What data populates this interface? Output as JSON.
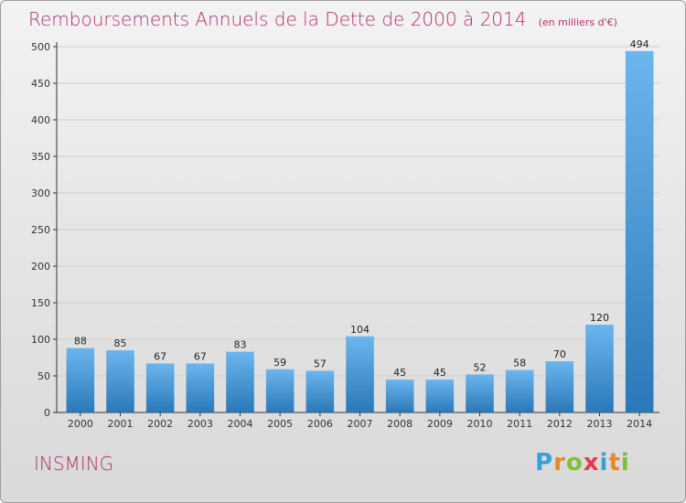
{
  "title": "Remboursements Annuels de la Dette de 2000 à 2014",
  "subtitle": "(en milliers d'€)",
  "commune": "INSMING",
  "logo": {
    "text": "Proxiti",
    "letters": [
      "P",
      "r",
      "o",
      "x",
      "i",
      "t",
      "i"
    ],
    "letter_colors": [
      "#3aa0d8",
      "#e8882b",
      "#7fbf3a",
      "#e5394c",
      "#3aa0d8",
      "#e8882b",
      "#7fbf3a"
    ]
  },
  "colors": {
    "title": "#b0306f",
    "bar_light": "#6cb6ee",
    "bar_dark": "#2a78b8",
    "axis": "#333333",
    "grid": "#cfcfcf"
  },
  "chart_data": {
    "type": "bar",
    "categories": [
      "2000",
      "2001",
      "2002",
      "2003",
      "2004",
      "2005",
      "2006",
      "2007",
      "2008",
      "2009",
      "2010",
      "2011",
      "2012",
      "2013",
      "2014"
    ],
    "values": [
      88,
      85,
      67,
      67,
      83,
      59,
      57,
      104,
      45,
      45,
      52,
      58,
      70,
      120,
      494
    ],
    "ylim": [
      0,
      500
    ],
    "yticks": [
      0,
      50,
      100,
      150,
      200,
      250,
      300,
      350,
      400,
      450,
      500
    ],
    "grid": true,
    "data_labels": true
  }
}
